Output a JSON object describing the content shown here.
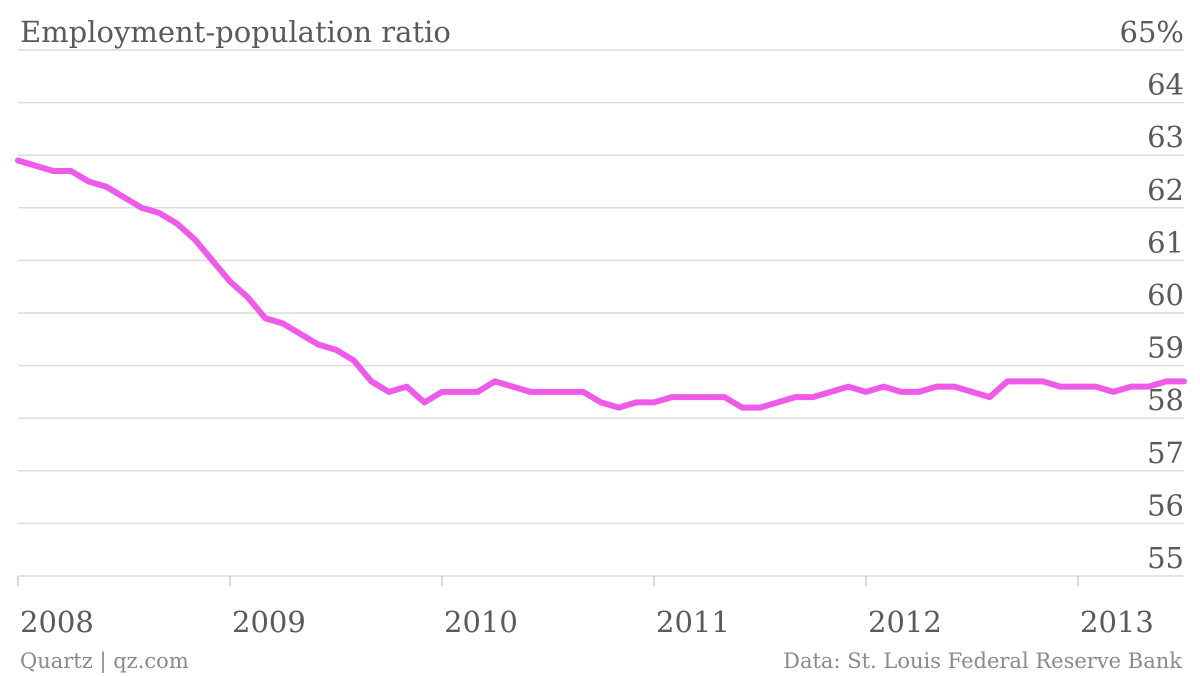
{
  "chart_data": {
    "type": "line",
    "title": "Employment-population ratio",
    "y_unit_suffix": "%",
    "ylim": [
      55,
      65
    ],
    "y_ticks": [
      65,
      64,
      63,
      62,
      61,
      60,
      59,
      58,
      57,
      56,
      55
    ],
    "x_ticks": [
      "2008",
      "2009",
      "2010",
      "2011",
      "2012",
      "2013"
    ],
    "x_start": "2008-01",
    "x_end": "2013-07",
    "grid": true,
    "line_color": "#f05ae8",
    "series": [
      {
        "x": [
          "2008-01",
          "2008-02",
          "2008-03",
          "2008-04",
          "2008-05",
          "2008-06",
          "2008-07",
          "2008-08",
          "2008-09",
          "2008-10",
          "2008-11",
          "2008-12",
          "2009-01",
          "2009-02",
          "2009-03",
          "2009-04",
          "2009-05",
          "2009-06",
          "2009-07",
          "2009-08",
          "2009-09",
          "2009-10",
          "2009-11",
          "2009-12",
          "2010-01",
          "2010-02",
          "2010-03",
          "2010-04",
          "2010-05",
          "2010-06",
          "2010-07",
          "2010-08",
          "2010-09",
          "2010-10",
          "2010-11",
          "2010-12",
          "2011-01",
          "2011-02",
          "2011-03",
          "2011-04",
          "2011-05",
          "2011-06",
          "2011-07",
          "2011-08",
          "2011-09",
          "2011-10",
          "2011-11",
          "2011-12",
          "2012-01",
          "2012-02",
          "2012-03",
          "2012-04",
          "2012-05",
          "2012-06",
          "2012-07",
          "2012-08",
          "2012-09",
          "2012-10",
          "2012-11",
          "2012-12",
          "2013-01",
          "2013-02",
          "2013-03",
          "2013-04",
          "2013-05",
          "2013-06",
          "2013-07"
        ],
        "values": [
          62.9,
          62.8,
          62.7,
          62.7,
          62.5,
          62.4,
          62.2,
          62.0,
          61.9,
          61.7,
          61.4,
          61.0,
          60.6,
          60.3,
          59.9,
          59.8,
          59.6,
          59.4,
          59.3,
          59.1,
          58.7,
          58.5,
          58.6,
          58.3,
          58.5,
          58.5,
          58.5,
          58.7,
          58.6,
          58.5,
          58.5,
          58.5,
          58.5,
          58.3,
          58.2,
          58.3,
          58.3,
          58.4,
          58.4,
          58.4,
          58.4,
          58.2,
          58.2,
          58.3,
          58.4,
          58.4,
          58.5,
          58.6,
          58.5,
          58.6,
          58.5,
          58.5,
          58.6,
          58.6,
          58.5,
          58.4,
          58.7,
          58.7,
          58.7,
          58.6,
          58.6,
          58.6,
          58.5,
          58.6,
          58.6,
          58.7,
          58.7
        ]
      }
    ]
  },
  "footer": {
    "source_left": "Quartz | qz.com",
    "source_right": "Data: St. Louis Federal Reserve Bank"
  }
}
